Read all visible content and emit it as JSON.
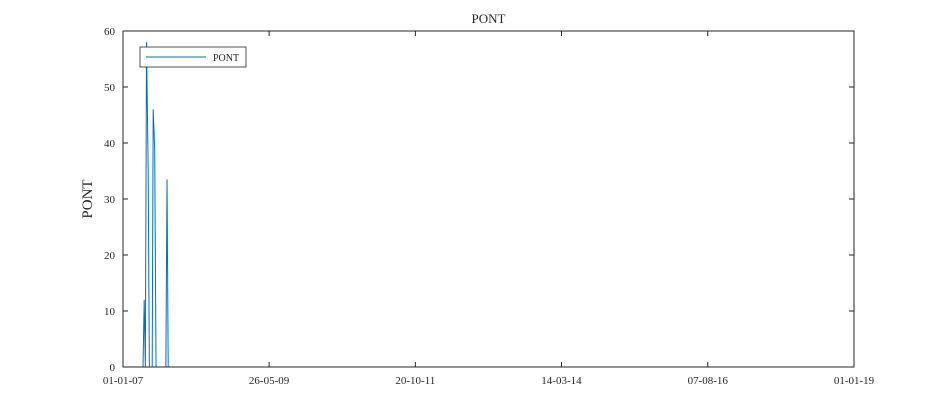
{
  "chart_data": {
    "type": "line",
    "title": "PONT",
    "xlabel": "",
    "ylabel": "PONT",
    "x_axis": {
      "type": "date",
      "range": [
        "2007-01-01",
        "2019-01-01"
      ],
      "ticks": [
        {
          "date": "2007-01-01",
          "label": "01-01-07"
        },
        {
          "date": "2009-05-26",
          "label": "26-05-09"
        },
        {
          "date": "2011-10-20",
          "label": "20-10-11"
        },
        {
          "date": "2014-03-14",
          "label": "14-03-14"
        },
        {
          "date": "2016-08-07",
          "label": "07-08-16"
        },
        {
          "date": "2019-01-01",
          "label": "01-01-19"
        }
      ]
    },
    "y_axis": {
      "range": [
        0,
        60
      ],
      "ticks": [
        0,
        10,
        20,
        30,
        40,
        50,
        60
      ]
    },
    "grid": false,
    "legend": {
      "placement": "top-left",
      "entries": [
        "PONT"
      ]
    },
    "series": [
      {
        "name": "PONT",
        "color": "#0072BD",
        "points": [
          {
            "x": "2007-01-01",
            "y": 0
          },
          {
            "x": "2007-05-01",
            "y": 0
          },
          {
            "x": "2007-05-08",
            "y": 12
          },
          {
            "x": "2007-05-15",
            "y": 0
          },
          {
            "x": "2007-05-22",
            "y": 58
          },
          {
            "x": "2007-06-01",
            "y": 35
          },
          {
            "x": "2007-06-08",
            "y": 0
          },
          {
            "x": "2007-06-25",
            "y": 0
          },
          {
            "x": "2007-07-01",
            "y": 46
          },
          {
            "x": "2007-07-10",
            "y": 39
          },
          {
            "x": "2007-07-18",
            "y": 0
          },
          {
            "x": "2007-09-15",
            "y": 0
          },
          {
            "x": "2007-09-22",
            "y": 33.5
          },
          {
            "x": "2007-09-29",
            "y": 0
          },
          {
            "x": "2019-01-01",
            "y": 0
          }
        ]
      }
    ]
  }
}
